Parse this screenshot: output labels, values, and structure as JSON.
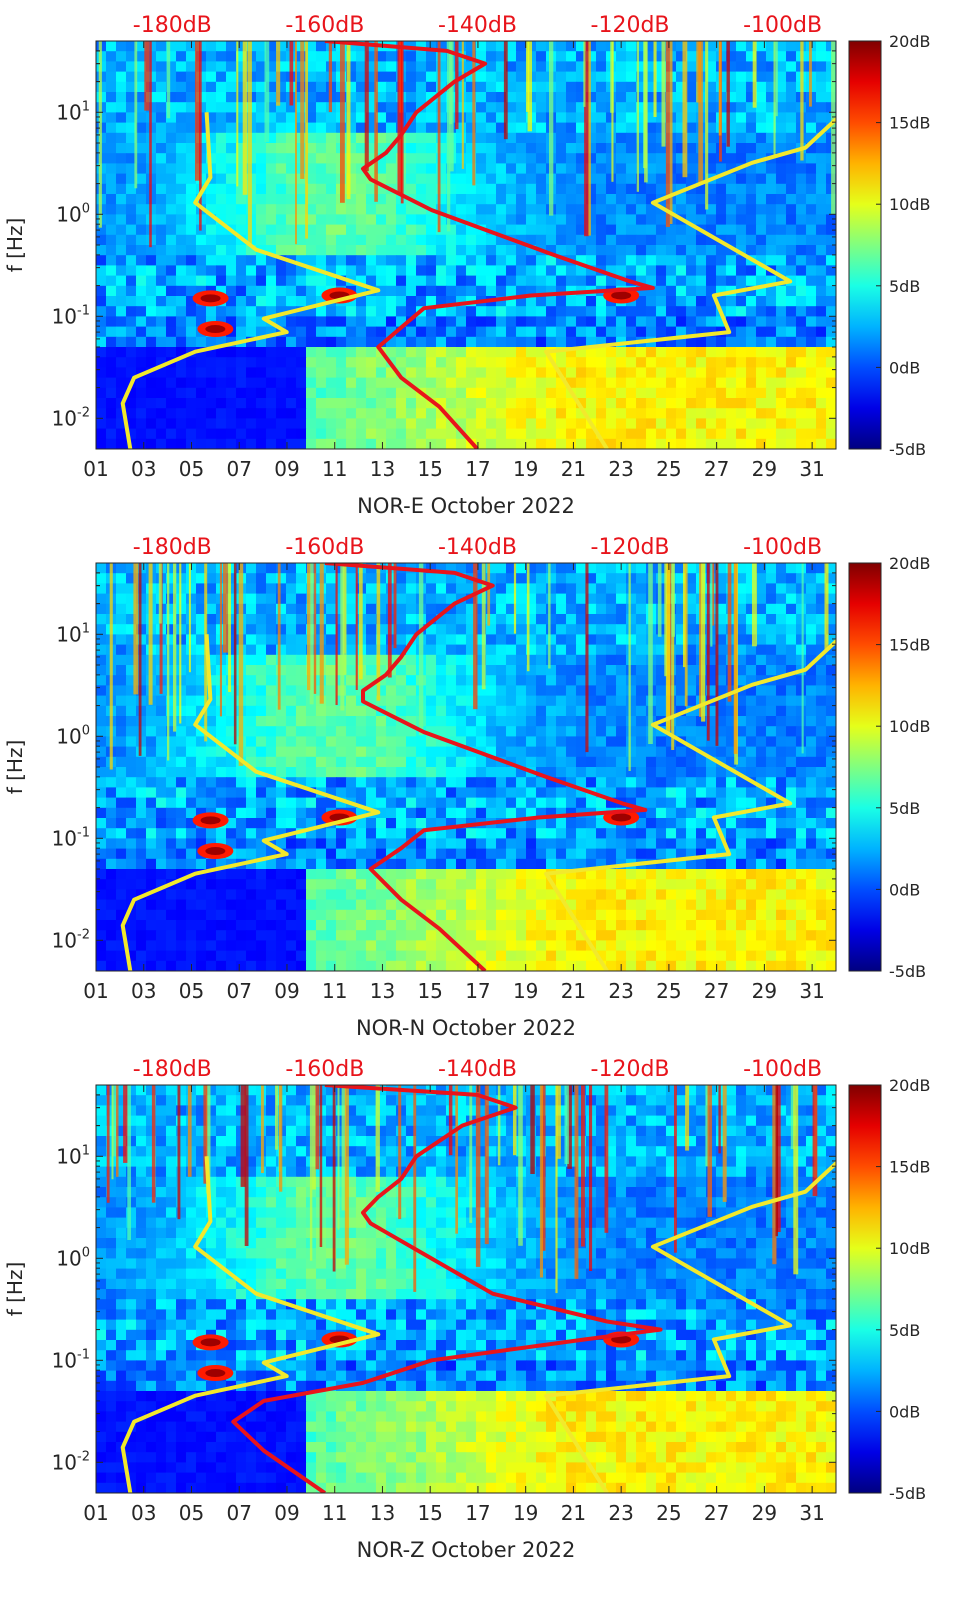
{
  "chart_data": [
    {
      "type": "heatmap",
      "xlabel": "NOR-E October 2022",
      "ylabel": "f [Hz]",
      "x_ticks": [
        "01",
        "03",
        "05",
        "07",
        "09",
        "11",
        "13",
        "15",
        "17",
        "19",
        "21",
        "23",
        "25",
        "27",
        "29",
        "31"
      ],
      "x_range": [
        1,
        32
      ],
      "y_scale": "log",
      "y_range": [
        0.005,
        50
      ],
      "y_ticks": [
        {
          "base": "10",
          "exp": "-2",
          "value": 0.01
        },
        {
          "base": "10",
          "exp": "-1",
          "value": 0.1
        },
        {
          "base": "10",
          "exp": "0",
          "value": 1
        },
        {
          "base": "10",
          "exp": "1",
          "value": 10
        }
      ],
      "top_axis_ticks": [
        "-180dB",
        "-160dB",
        "-140dB",
        "-120dB",
        "-100dB"
      ],
      "top_axis_range": [
        -190,
        -93
      ],
      "colorbar": {
        "ticks": [
          "20dB",
          "15dB",
          "10dB",
          "5dB",
          "0dB",
          "-5dB"
        ],
        "range": [
          -5,
          20
        ],
        "colormap": "jet"
      },
      "series": [
        {
          "color": "#f2e92c",
          "points": [
            [
              -185.5,
              0.005
            ],
            [
              -186.5,
              0.014
            ],
            [
              -185,
              0.025
            ],
            [
              -177,
              0.045
            ],
            [
              -165,
              0.07
            ],
            [
              -168,
              0.095
            ],
            [
              -153,
              0.18
            ],
            [
              -169,
              0.45
            ],
            [
              -177,
              1.3
            ],
            [
              -175,
              2.3
            ],
            [
              -175.5,
              10
            ]
          ]
        },
        {
          "color": "#f2e92c",
          "points": [
            [
              -123,
              0.005
            ],
            [
              -131,
              0.045
            ],
            [
              -107,
              0.07
            ],
            [
              -109,
              0.16
            ],
            [
              -99,
              0.22
            ],
            [
              -117,
              1.3
            ],
            [
              -104,
              3.2
            ],
            [
              -97,
              4.5
            ],
            [
              -92,
              10
            ]
          ]
        },
        {
          "color": "#e8141b",
          "points": [
            [
              -140,
              0.005
            ],
            [
              -145,
              0.013
            ],
            [
              -150,
              0.025
            ],
            [
              -153,
              0.05
            ],
            [
              -149,
              0.09
            ],
            [
              -147,
              0.12
            ],
            [
              -133,
              0.16
            ],
            [
              -117,
              0.19
            ],
            [
              -120,
              0.22
            ],
            [
              -130,
              0.4
            ],
            [
              -146,
              1.1
            ],
            [
              -154,
              2.2
            ],
            [
              -155,
              2.8
            ],
            [
              -152,
              4
            ],
            [
              -150,
              6
            ],
            [
              -148,
              10
            ],
            [
              -143,
              20
            ],
            [
              -139,
              30
            ],
            [
              -144,
              40
            ],
            [
              -160,
              50
            ]
          ]
        }
      ]
    },
    {
      "type": "heatmap",
      "xlabel": "NOR-N October 2022",
      "ylabel": "f [Hz]",
      "x_ticks": [
        "01",
        "03",
        "05",
        "07",
        "09",
        "11",
        "13",
        "15",
        "17",
        "19",
        "21",
        "23",
        "25",
        "27",
        "29",
        "31"
      ],
      "x_range": [
        1,
        32
      ],
      "y_scale": "log",
      "y_range": [
        0.005,
        50
      ],
      "y_ticks": [
        {
          "base": "10",
          "exp": "-2",
          "value": 0.01
        },
        {
          "base": "10",
          "exp": "-1",
          "value": 0.1
        },
        {
          "base": "10",
          "exp": "0",
          "value": 1
        },
        {
          "base": "10",
          "exp": "1",
          "value": 10
        }
      ],
      "top_axis_ticks": [
        "-180dB",
        "-160dB",
        "-140dB",
        "-120dB",
        "-100dB"
      ],
      "top_axis_range": [
        -190,
        -93
      ],
      "colorbar": {
        "ticks": [
          "20dB",
          "15dB",
          "10dB",
          "5dB",
          "0dB",
          "-5dB"
        ],
        "range": [
          -5,
          20
        ],
        "colormap": "jet"
      },
      "series": [
        {
          "color": "#f2e92c",
          "points": [
            [
              -185.5,
              0.005
            ],
            [
              -186.5,
              0.014
            ],
            [
              -185,
              0.025
            ],
            [
              -177,
              0.045
            ],
            [
              -165,
              0.07
            ],
            [
              -168,
              0.095
            ],
            [
              -153,
              0.18
            ],
            [
              -169,
              0.45
            ],
            [
              -177,
              1.3
            ],
            [
              -175,
              2.3
            ],
            [
              -175.5,
              10
            ]
          ]
        },
        {
          "color": "#f2e92c",
          "points": [
            [
              -123,
              0.005
            ],
            [
              -131,
              0.045
            ],
            [
              -107,
              0.07
            ],
            [
              -109,
              0.16
            ],
            [
              -99,
              0.22
            ],
            [
              -117,
              1.3
            ],
            [
              -104,
              3.2
            ],
            [
              -97,
              4.5
            ],
            [
              -92,
              10
            ]
          ]
        },
        {
          "color": "#e8141b",
          "points": [
            [
              -139,
              0.005
            ],
            [
              -145,
              0.013
            ],
            [
              -150,
              0.025
            ],
            [
              -154,
              0.05
            ],
            [
              -150,
              0.08
            ],
            [
              -147,
              0.12
            ],
            [
              -132,
              0.16
            ],
            [
              -118,
              0.19
            ],
            [
              -121,
              0.22
            ],
            [
              -131,
              0.4
            ],
            [
              -147,
              1.1
            ],
            [
              -155,
              2.2
            ],
            [
              -155,
              2.8
            ],
            [
              -152,
              4
            ],
            [
              -150,
              6
            ],
            [
              -148,
              10
            ],
            [
              -143,
              20
            ],
            [
              -138,
              30
            ],
            [
              -143,
              40
            ],
            [
              -160,
              50
            ]
          ]
        }
      ]
    },
    {
      "type": "heatmap",
      "xlabel": "NOR-Z October 2022",
      "ylabel": "f [Hz]",
      "x_ticks": [
        "01",
        "03",
        "05",
        "07",
        "09",
        "11",
        "13",
        "15",
        "17",
        "19",
        "21",
        "23",
        "25",
        "27",
        "29",
        "31"
      ],
      "x_range": [
        1,
        32
      ],
      "y_scale": "log",
      "y_range": [
        0.005,
        50
      ],
      "y_ticks": [
        {
          "base": "10",
          "exp": "-2",
          "value": 0.01
        },
        {
          "base": "10",
          "exp": "-1",
          "value": 0.1
        },
        {
          "base": "10",
          "exp": "0",
          "value": 1
        },
        {
          "base": "10",
          "exp": "1",
          "value": 10
        }
      ],
      "top_axis_ticks": [
        "-180dB",
        "-160dB",
        "-140dB",
        "-120dB",
        "-100dB"
      ],
      "top_axis_range": [
        -190,
        -93
      ],
      "colorbar": {
        "ticks": [
          "20dB",
          "15dB",
          "10dB",
          "5dB",
          "0dB",
          "-5dB"
        ],
        "range": [
          -5,
          20
        ],
        "colormap": "jet"
      },
      "series": [
        {
          "color": "#f2e92c",
          "points": [
            [
              -185.5,
              0.005
            ],
            [
              -186.5,
              0.014
            ],
            [
              -185,
              0.025
            ],
            [
              -177,
              0.045
            ],
            [
              -165,
              0.07
            ],
            [
              -168,
              0.095
            ],
            [
              -153,
              0.18
            ],
            [
              -169,
              0.45
            ],
            [
              -177,
              1.3
            ],
            [
              -175,
              2.3
            ],
            [
              -175.5,
              10
            ]
          ]
        },
        {
          "color": "#f2e92c",
          "points": [
            [
              -123,
              0.005
            ],
            [
              -131,
              0.045
            ],
            [
              -107,
              0.07
            ],
            [
              -109,
              0.16
            ],
            [
              -99,
              0.22
            ],
            [
              -117,
              1.3
            ],
            [
              -104,
              3.2
            ],
            [
              -97,
              4.5
            ],
            [
              -92,
              10
            ]
          ]
        },
        {
          "color": "#e8141b",
          "points": [
            [
              -160,
              0.005
            ],
            [
              -168,
              0.013
            ],
            [
              -172,
              0.025
            ],
            [
              -168,
              0.04
            ],
            [
              -155,
              0.06
            ],
            [
              -146,
              0.1
            ],
            [
              -126,
              0.16
            ],
            [
              -116,
              0.2
            ],
            [
              -123,
              0.24
            ],
            [
              -138,
              0.45
            ],
            [
              -147,
              1.1
            ],
            [
              -154,
              2.2
            ],
            [
              -155,
              2.8
            ],
            [
              -153,
              4
            ],
            [
              -150,
              6
            ],
            [
              -148,
              10
            ],
            [
              -142,
              20
            ],
            [
              -135,
              30
            ],
            [
              -140,
              40
            ],
            [
              -160,
              50
            ]
          ]
        }
      ]
    }
  ]
}
